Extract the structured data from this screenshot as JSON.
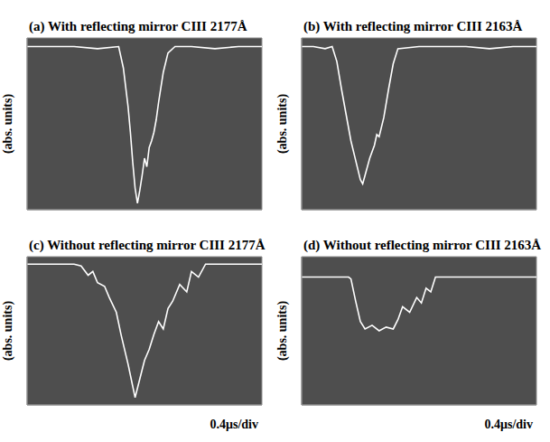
{
  "chart_data": [
    {
      "type": "line",
      "title": "(a) With reflecting mirror CIII 2177Å",
      "ylabel": "(abs. units)",
      "grid": true,
      "tick_labels": false,
      "xlim": [
        0,
        10
      ],
      "xticks": [
        0,
        1,
        2,
        3,
        4,
        5,
        6,
        7,
        8,
        9,
        10
      ],
      "ylim": [
        0,
        8
      ],
      "yticks": [
        0,
        1,
        2,
        3,
        4,
        5,
        6,
        7,
        8
      ],
      "x": [
        0,
        1,
        2,
        3,
        3.9,
        4.1,
        4.3,
        4.4,
        4.5,
        4.6,
        4.7,
        4.8,
        4.9,
        5.0,
        5.1,
        5.2,
        5.3,
        5.4,
        5.5,
        5.6,
        5.8,
        6.0,
        6.3,
        7,
        8,
        9,
        10
      ],
      "values": [
        7.6,
        7.6,
        7.6,
        7.5,
        7.6,
        6.6,
        4.8,
        3.6,
        2.2,
        1.0,
        0.3,
        0.9,
        1.6,
        2.4,
        2.0,
        2.9,
        3.2,
        3.6,
        4.2,
        5.0,
        6.4,
        7.3,
        7.6,
        7.6,
        7.5,
        7.6,
        7.6
      ],
      "color": "#ffffff"
    },
    {
      "type": "line",
      "title": "(b) With reflecting mirror CIII 2163Å",
      "ylabel": "(abs. units)",
      "grid": true,
      "tick_labels": false,
      "xlim": [
        0,
        10
      ],
      "xticks": [
        0,
        1,
        2,
        3,
        4,
        5,
        6,
        7,
        8,
        9,
        10
      ],
      "ylim": [
        0,
        8
      ],
      "yticks": [
        0,
        1,
        2,
        3,
        4,
        5,
        6,
        7,
        8
      ],
      "x": [
        0,
        0.5,
        1,
        1.3,
        1.5,
        1.7,
        1.9,
        2.1,
        2.3,
        2.5,
        2.6,
        2.7,
        2.9,
        3.1,
        3.2,
        3.3,
        3.5,
        3.7,
        3.9,
        4.1,
        5,
        6,
        7,
        8,
        9,
        10
      ],
      "values": [
        7.6,
        7.6,
        7.5,
        7.6,
        6.9,
        5.6,
        4.4,
        3.2,
        2.3,
        1.4,
        1.2,
        1.6,
        2.4,
        3.0,
        3.5,
        3.4,
        4.3,
        5.6,
        6.8,
        7.5,
        7.6,
        7.6,
        7.6,
        7.5,
        7.6,
        7.6
      ],
      "color": "#ffffff"
    },
    {
      "type": "line",
      "title": "(c) Without reflecting mirror CIII 2177Å",
      "ylabel": "(abs. units)",
      "xlabel": "0.4μs/div",
      "grid": true,
      "tick_labels": false,
      "xlim": [
        0,
        10
      ],
      "xticks": [
        0,
        1,
        2,
        3,
        4,
        5,
        6,
        7,
        8,
        9,
        10
      ],
      "ylim": [
        0,
        8
      ],
      "yticks": [
        0,
        1,
        2,
        3,
        4,
        5,
        6,
        7,
        8
      ],
      "x": [
        0,
        1,
        2,
        2.3,
        2.6,
        2.8,
        3.0,
        3.3,
        3.5,
        3.8,
        4.0,
        4.3,
        4.5,
        4.6,
        4.8,
        5.0,
        5.2,
        5.4,
        5.6,
        5.8,
        6.0,
        6.2,
        6.5,
        6.8,
        7.0,
        7.3,
        7.6,
        8,
        9,
        10
      ],
      "values": [
        7.6,
        7.6,
        7.6,
        7.5,
        7.0,
        7.2,
        6.6,
        6.4,
        5.8,
        5.0,
        3.8,
        2.2,
        1.0,
        0.4,
        1.4,
        2.4,
        3.0,
        3.8,
        4.5,
        4.1,
        5.2,
        5.6,
        6.5,
        6.1,
        7.2,
        6.9,
        7.6,
        7.6,
        7.6,
        7.6
      ],
      "color": "#ffffff"
    },
    {
      "type": "line",
      "title": "(d) Without reflecting mirror CIII 2163Å",
      "ylabel": "(abs. units)",
      "xlabel": "0.4μs/div",
      "grid": true,
      "tick_labels": false,
      "xlim": [
        0,
        10
      ],
      "xticks": [
        0,
        1,
        2,
        3,
        4,
        5,
        6,
        7,
        8,
        9,
        10
      ],
      "ylim": [
        0,
        8
      ],
      "yticks": [
        0,
        1,
        2,
        3,
        4,
        5,
        6,
        7,
        8
      ],
      "x": [
        0,
        1,
        2,
        2.1,
        2.3,
        2.5,
        2.7,
        3.0,
        3.3,
        3.6,
        3.9,
        4.1,
        4.3,
        4.6,
        4.9,
        5.1,
        5.3,
        5.5,
        5.7,
        6,
        7,
        8,
        9,
        10
      ],
      "values": [
        6.9,
        6.9,
        6.9,
        6.8,
        5.6,
        4.5,
        4.1,
        4.3,
        4.0,
        4.2,
        4.1,
        4.6,
        5.3,
        5.0,
        5.8,
        5.5,
        6.3,
        6.1,
        6.9,
        6.9,
        6.9,
        6.9,
        6.9,
        6.9
      ],
      "color": "#ffffff"
    }
  ]
}
